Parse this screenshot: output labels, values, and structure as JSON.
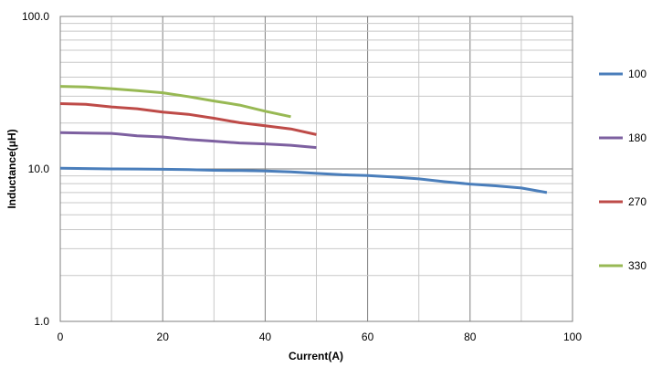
{
  "chart_data": {
    "type": "line",
    "title": "",
    "xlabel": "Current(A)",
    "ylabel": "Inductance(μH)",
    "xlim": [
      0,
      100
    ],
    "ylim": [
      1,
      100
    ],
    "yscale": "log",
    "x_ticks": [
      0,
      20,
      40,
      60,
      80,
      100
    ],
    "x_tick_labels": [
      "0",
      "20",
      "40",
      "60",
      "80",
      "100"
    ],
    "y_tick_values": [
      1,
      10,
      100
    ],
    "y_tick_labels": [
      "1.0",
      "10.0",
      "100.0"
    ],
    "grid": true,
    "legend_position": "right",
    "series": [
      {
        "name": "100",
        "color": "#4a7ebb",
        "x": [
          0,
          5,
          10,
          15,
          20,
          25,
          30,
          35,
          40,
          45,
          50,
          55,
          60,
          65,
          70,
          75,
          80,
          85,
          90,
          95
        ],
        "y": [
          10.1,
          10.05,
          10.0,
          9.98,
          9.95,
          9.9,
          9.8,
          9.75,
          9.7,
          9.55,
          9.35,
          9.15,
          9.05,
          8.85,
          8.6,
          8.25,
          7.95,
          7.75,
          7.5,
          7.0
        ]
      },
      {
        "name": "180",
        "color": "#7d60a0",
        "x": [
          0,
          5,
          10,
          15,
          20,
          25,
          30,
          35,
          40,
          45,
          50
        ],
        "y": [
          17.3,
          17.2,
          17.1,
          16.5,
          16.2,
          15.6,
          15.2,
          14.8,
          14.6,
          14.3,
          13.8
        ]
      },
      {
        "name": "270",
        "color": "#be4b48",
        "x": [
          0,
          5,
          10,
          15,
          20,
          25,
          30,
          35,
          40,
          45,
          50
        ],
        "y": [
          26.8,
          26.5,
          25.5,
          24.8,
          23.6,
          22.8,
          21.5,
          20.1,
          19.2,
          18.3,
          16.8
        ]
      },
      {
        "name": "330",
        "color": "#98b954",
        "x": [
          0,
          5,
          10,
          15,
          20,
          25,
          30,
          35,
          40,
          45
        ],
        "y": [
          34.8,
          34.5,
          33.6,
          32.6,
          31.6,
          29.8,
          27.9,
          26.2,
          23.9,
          22.0
        ]
      }
    ]
  }
}
